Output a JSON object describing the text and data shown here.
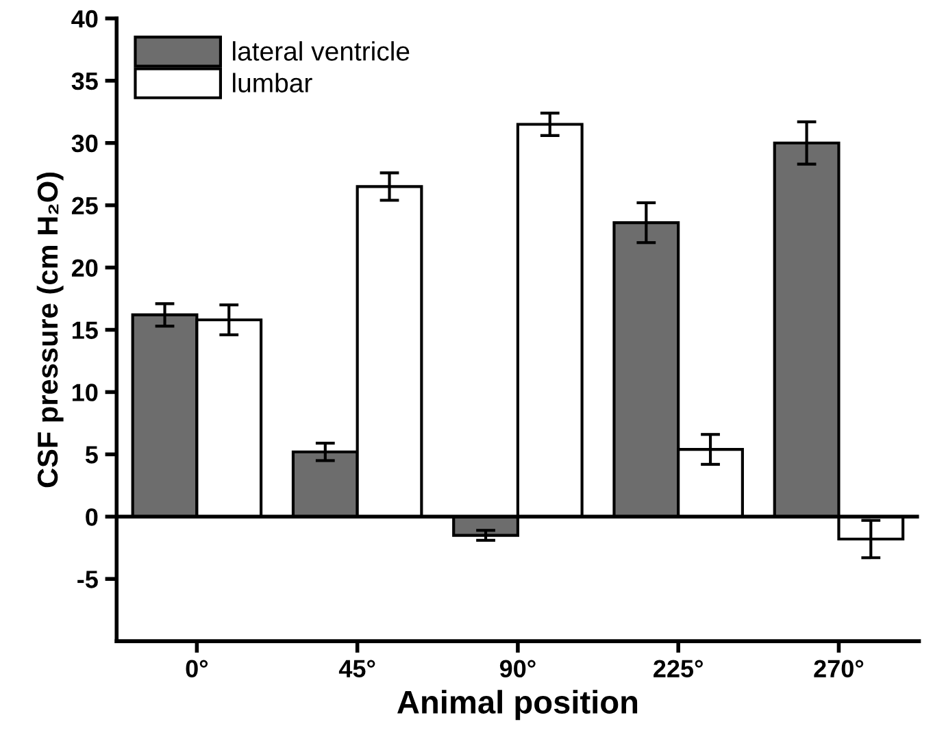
{
  "chart_data": {
    "type": "bar",
    "xlabel": "Animal position",
    "ylabel": "CSF pressure (cm H₂O)",
    "categories": [
      "0°",
      "45°",
      "90°",
      "225°",
      "270°"
    ],
    "series": [
      {
        "name": "lateral ventricle",
        "color": "#6d6d6d",
        "values": [
          16.2,
          5.2,
          -1.5,
          23.6,
          30.0
        ],
        "errors": [
          0.9,
          0.7,
          0.4,
          1.6,
          1.7
        ]
      },
      {
        "name": "lumbar",
        "color": "#ffffff",
        "values": [
          15.8,
          26.5,
          31.5,
          5.4,
          -1.8
        ],
        "errors": [
          1.2,
          1.1,
          0.9,
          1.2,
          1.5
        ]
      }
    ],
    "ylim": [
      -10,
      40
    ],
    "yticks": [
      {
        "value": -5,
        "label": "-5"
      },
      0,
      5,
      10,
      15,
      20,
      25,
      30,
      35,
      40
    ],
    "legend": "top left"
  }
}
